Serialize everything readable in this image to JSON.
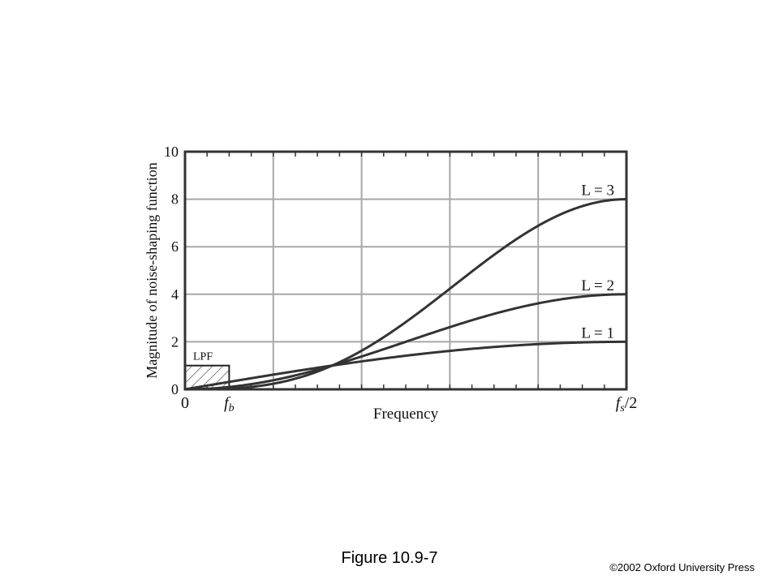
{
  "chart_data": {
    "type": "line",
    "title": "",
    "xlabel": "Frequency",
    "ylabel": "Magnitude of noise-shaping function",
    "xlim": [
      0,
      1
    ],
    "ylim": [
      0,
      10
    ],
    "x_tick_labels": [
      {
        "x": 0,
        "label": "0"
      },
      {
        "x": 0.1,
        "label": "f_b"
      },
      {
        "x": 1,
        "label": "f_s/2"
      }
    ],
    "y_ticks": [
      0,
      2,
      4,
      6,
      8,
      10
    ],
    "grid": true,
    "series": [
      {
        "name": "L = 1",
        "order": 1,
        "color": "#333333"
      },
      {
        "name": "L = 2",
        "order": 2,
        "color": "#333333"
      },
      {
        "name": "L = 3",
        "order": 3,
        "color": "#333333"
      }
    ],
    "lpf": {
      "label": "LPF",
      "x_end": 0.1,
      "level": 1
    }
  },
  "figure": {
    "caption": "Figure 10.9-7",
    "copyright": "©2002 Oxford University Press"
  }
}
